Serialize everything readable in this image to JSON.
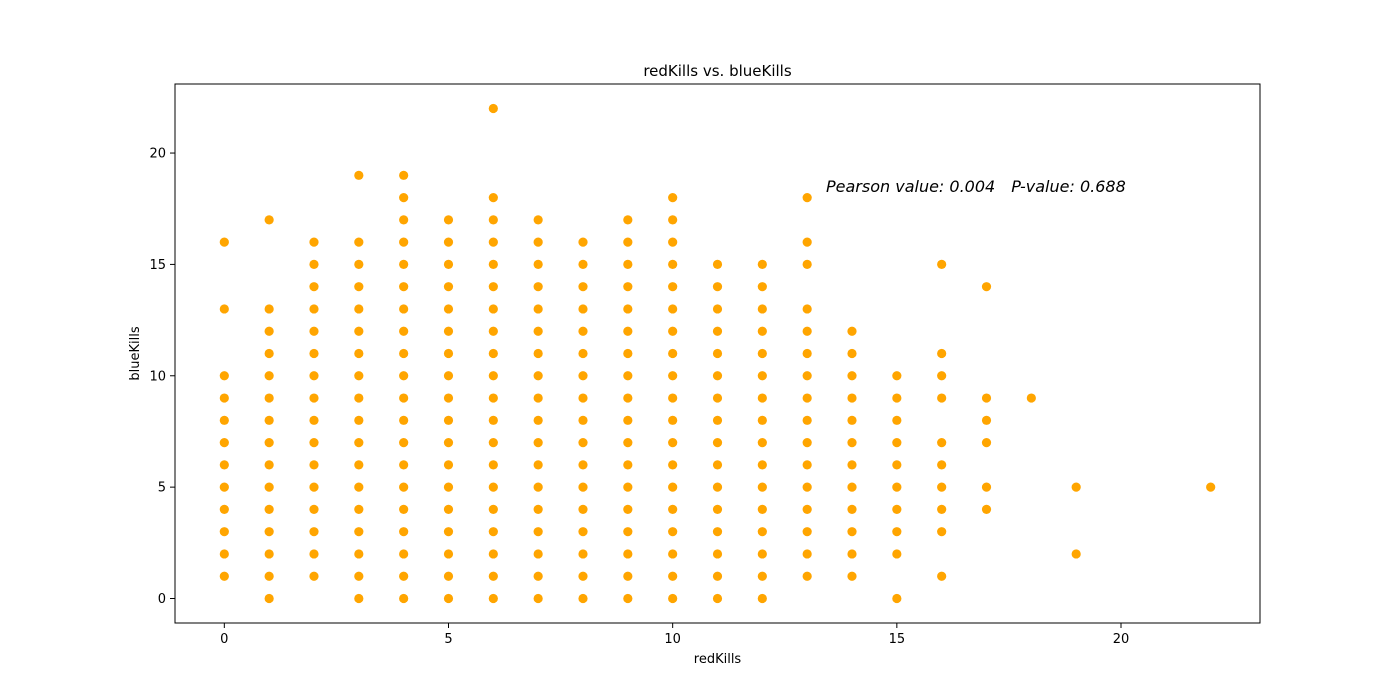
{
  "chart_data": {
    "type": "scatter",
    "title": "redKills vs. blueKills",
    "xlabel": "redKills",
    "ylabel": "blueKills",
    "xlim": [
      -1.1,
      23.1
    ],
    "ylim": [
      -1.1,
      23.1
    ],
    "xticks": [
      0,
      5,
      10,
      15,
      20
    ],
    "yticks": [
      0,
      5,
      10,
      15,
      20
    ],
    "grid": false,
    "marker_color": "#ffa500",
    "annotation": {
      "pearson": "Pearson value: 0.004",
      "pvalue": "P-value: 0.688"
    },
    "points": [
      [
        0,
        1
      ],
      [
        0,
        2
      ],
      [
        0,
        3
      ],
      [
        0,
        4
      ],
      [
        0,
        5
      ],
      [
        0,
        6
      ],
      [
        0,
        7
      ],
      [
        0,
        8
      ],
      [
        0,
        9
      ],
      [
        0,
        10
      ],
      [
        0,
        13
      ],
      [
        0,
        16
      ],
      [
        1,
        0
      ],
      [
        1,
        1
      ],
      [
        1,
        2
      ],
      [
        1,
        3
      ],
      [
        1,
        4
      ],
      [
        1,
        5
      ],
      [
        1,
        6
      ],
      [
        1,
        7
      ],
      [
        1,
        8
      ],
      [
        1,
        9
      ],
      [
        1,
        10
      ],
      [
        1,
        11
      ],
      [
        1,
        12
      ],
      [
        1,
        13
      ],
      [
        1,
        17
      ],
      [
        2,
        1
      ],
      [
        2,
        2
      ],
      [
        2,
        3
      ],
      [
        2,
        4
      ],
      [
        2,
        5
      ],
      [
        2,
        6
      ],
      [
        2,
        7
      ],
      [
        2,
        8
      ],
      [
        2,
        9
      ],
      [
        2,
        10
      ],
      [
        2,
        11
      ],
      [
        2,
        12
      ],
      [
        2,
        13
      ],
      [
        2,
        14
      ],
      [
        2,
        15
      ],
      [
        2,
        16
      ],
      [
        3,
        0
      ],
      [
        3,
        1
      ],
      [
        3,
        2
      ],
      [
        3,
        3
      ],
      [
        3,
        4
      ],
      [
        3,
        5
      ],
      [
        3,
        6
      ],
      [
        3,
        7
      ],
      [
        3,
        8
      ],
      [
        3,
        9
      ],
      [
        3,
        10
      ],
      [
        3,
        11
      ],
      [
        3,
        12
      ],
      [
        3,
        13
      ],
      [
        3,
        14
      ],
      [
        3,
        15
      ],
      [
        3,
        16
      ],
      [
        3,
        19
      ],
      [
        4,
        0
      ],
      [
        4,
        1
      ],
      [
        4,
        2
      ],
      [
        4,
        3
      ],
      [
        4,
        4
      ],
      [
        4,
        5
      ],
      [
        4,
        6
      ],
      [
        4,
        7
      ],
      [
        4,
        8
      ],
      [
        4,
        9
      ],
      [
        4,
        10
      ],
      [
        4,
        11
      ],
      [
        4,
        12
      ],
      [
        4,
        13
      ],
      [
        4,
        14
      ],
      [
        4,
        15
      ],
      [
        4,
        16
      ],
      [
        4,
        17
      ],
      [
        4,
        18
      ],
      [
        4,
        19
      ],
      [
        5,
        0
      ],
      [
        5,
        1
      ],
      [
        5,
        2
      ],
      [
        5,
        3
      ],
      [
        5,
        4
      ],
      [
        5,
        5
      ],
      [
        5,
        6
      ],
      [
        5,
        7
      ],
      [
        5,
        8
      ],
      [
        5,
        9
      ],
      [
        5,
        10
      ],
      [
        5,
        11
      ],
      [
        5,
        12
      ],
      [
        5,
        13
      ],
      [
        5,
        14
      ],
      [
        5,
        15
      ],
      [
        5,
        16
      ],
      [
        5,
        17
      ],
      [
        6,
        0
      ],
      [
        6,
        1
      ],
      [
        6,
        2
      ],
      [
        6,
        3
      ],
      [
        6,
        4
      ],
      [
        6,
        5
      ],
      [
        6,
        6
      ],
      [
        6,
        7
      ],
      [
        6,
        8
      ],
      [
        6,
        9
      ],
      [
        6,
        10
      ],
      [
        6,
        11
      ],
      [
        6,
        12
      ],
      [
        6,
        13
      ],
      [
        6,
        14
      ],
      [
        6,
        15
      ],
      [
        6,
        16
      ],
      [
        6,
        17
      ],
      [
        6,
        18
      ],
      [
        6,
        22
      ],
      [
        7,
        0
      ],
      [
        7,
        1
      ],
      [
        7,
        2
      ],
      [
        7,
        3
      ],
      [
        7,
        4
      ],
      [
        7,
        5
      ],
      [
        7,
        6
      ],
      [
        7,
        7
      ],
      [
        7,
        8
      ],
      [
        7,
        9
      ],
      [
        7,
        10
      ],
      [
        7,
        11
      ],
      [
        7,
        12
      ],
      [
        7,
        13
      ],
      [
        7,
        14
      ],
      [
        7,
        15
      ],
      [
        7,
        16
      ],
      [
        7,
        17
      ],
      [
        8,
        0
      ],
      [
        8,
        1
      ],
      [
        8,
        2
      ],
      [
        8,
        3
      ],
      [
        8,
        4
      ],
      [
        8,
        5
      ],
      [
        8,
        6
      ],
      [
        8,
        7
      ],
      [
        8,
        8
      ],
      [
        8,
        9
      ],
      [
        8,
        10
      ],
      [
        8,
        11
      ],
      [
        8,
        12
      ],
      [
        8,
        13
      ],
      [
        8,
        14
      ],
      [
        8,
        15
      ],
      [
        8,
        16
      ],
      [
        9,
        0
      ],
      [
        9,
        1
      ],
      [
        9,
        2
      ],
      [
        9,
        3
      ],
      [
        9,
        4
      ],
      [
        9,
        5
      ],
      [
        9,
        6
      ],
      [
        9,
        7
      ],
      [
        9,
        8
      ],
      [
        9,
        9
      ],
      [
        9,
        10
      ],
      [
        9,
        11
      ],
      [
        9,
        12
      ],
      [
        9,
        13
      ],
      [
        9,
        14
      ],
      [
        9,
        15
      ],
      [
        9,
        16
      ],
      [
        9,
        17
      ],
      [
        10,
        0
      ],
      [
        10,
        1
      ],
      [
        10,
        2
      ],
      [
        10,
        3
      ],
      [
        10,
        4
      ],
      [
        10,
        5
      ],
      [
        10,
        6
      ],
      [
        10,
        7
      ],
      [
        10,
        8
      ],
      [
        10,
        9
      ],
      [
        10,
        10
      ],
      [
        10,
        11
      ],
      [
        10,
        12
      ],
      [
        10,
        13
      ],
      [
        10,
        14
      ],
      [
        10,
        15
      ],
      [
        10,
        16
      ],
      [
        10,
        17
      ],
      [
        10,
        18
      ],
      [
        11,
        0
      ],
      [
        11,
        1
      ],
      [
        11,
        2
      ],
      [
        11,
        3
      ],
      [
        11,
        4
      ],
      [
        11,
        5
      ],
      [
        11,
        6
      ],
      [
        11,
        7
      ],
      [
        11,
        8
      ],
      [
        11,
        9
      ],
      [
        11,
        10
      ],
      [
        11,
        11
      ],
      [
        11,
        12
      ],
      [
        11,
        13
      ],
      [
        11,
        14
      ],
      [
        11,
        15
      ],
      [
        12,
        0
      ],
      [
        12,
        1
      ],
      [
        12,
        2
      ],
      [
        12,
        3
      ],
      [
        12,
        4
      ],
      [
        12,
        5
      ],
      [
        12,
        6
      ],
      [
        12,
        7
      ],
      [
        12,
        8
      ],
      [
        12,
        9
      ],
      [
        12,
        10
      ],
      [
        12,
        11
      ],
      [
        12,
        12
      ],
      [
        12,
        13
      ],
      [
        12,
        14
      ],
      [
        12,
        15
      ],
      [
        13,
        1
      ],
      [
        13,
        2
      ],
      [
        13,
        3
      ],
      [
        13,
        4
      ],
      [
        13,
        5
      ],
      [
        13,
        6
      ],
      [
        13,
        7
      ],
      [
        13,
        8
      ],
      [
        13,
        9
      ],
      [
        13,
        10
      ],
      [
        13,
        11
      ],
      [
        13,
        12
      ],
      [
        13,
        13
      ],
      [
        13,
        15
      ],
      [
        13,
        16
      ],
      [
        13,
        18
      ],
      [
        14,
        1
      ],
      [
        14,
        2
      ],
      [
        14,
        3
      ],
      [
        14,
        4
      ],
      [
        14,
        5
      ],
      [
        14,
        6
      ],
      [
        14,
        7
      ],
      [
        14,
        8
      ],
      [
        14,
        9
      ],
      [
        14,
        10
      ],
      [
        14,
        11
      ],
      [
        14,
        12
      ],
      [
        15,
        0
      ],
      [
        15,
        2
      ],
      [
        15,
        3
      ],
      [
        15,
        4
      ],
      [
        15,
        5
      ],
      [
        15,
        6
      ],
      [
        15,
        7
      ],
      [
        15,
        8
      ],
      [
        15,
        9
      ],
      [
        15,
        10
      ],
      [
        16,
        1
      ],
      [
        16,
        3
      ],
      [
        16,
        4
      ],
      [
        16,
        5
      ],
      [
        16,
        6
      ],
      [
        16,
        7
      ],
      [
        16,
        9
      ],
      [
        16,
        10
      ],
      [
        16,
        11
      ],
      [
        16,
        15
      ],
      [
        17,
        4
      ],
      [
        17,
        5
      ],
      [
        17,
        7
      ],
      [
        17,
        8
      ],
      [
        17,
        9
      ],
      [
        17,
        14
      ],
      [
        18,
        9
      ],
      [
        19,
        2
      ],
      [
        19,
        5
      ],
      [
        22,
        5
      ]
    ]
  }
}
